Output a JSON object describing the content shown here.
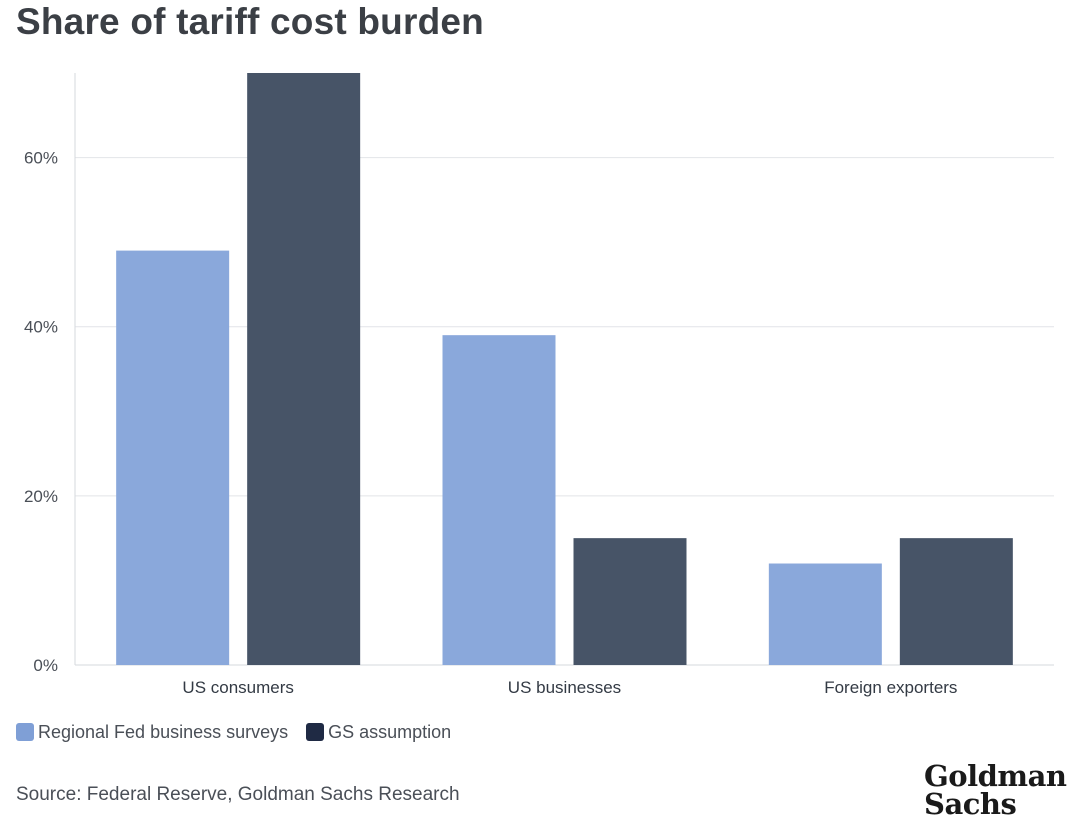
{
  "chart_data": {
    "type": "bar",
    "title": "Share of tariff cost burden",
    "categories": [
      "US consumers",
      "US businesses",
      "Foreign exporters"
    ],
    "series": [
      {
        "name": "Regional Fed business surveys",
        "color": "#8aa8db",
        "values": [
          49,
          39,
          12
        ]
      },
      {
        "name": "GS assumption",
        "color": "#475467",
        "values": [
          70,
          15,
          15
        ]
      }
    ],
    "ylim": [
      0,
      70
    ],
    "yticks": [
      0,
      20,
      40,
      60
    ],
    "ytick_labels": [
      "0%",
      "20%",
      "40%",
      "60%"
    ],
    "xlabel": "",
    "ylabel": "",
    "grid": true,
    "legend_position": "bottom-left"
  },
  "legend": {
    "items": [
      {
        "label": "Regional Fed business surveys",
        "color": "#7f9fd6"
      },
      {
        "label": "GS assumption",
        "color": "#1f2a44"
      }
    ]
  },
  "footer": {
    "source": "Source: Federal Reserve, Goldman Sachs Research",
    "logo_line1": "Goldman",
    "logo_line2": "Sachs"
  }
}
